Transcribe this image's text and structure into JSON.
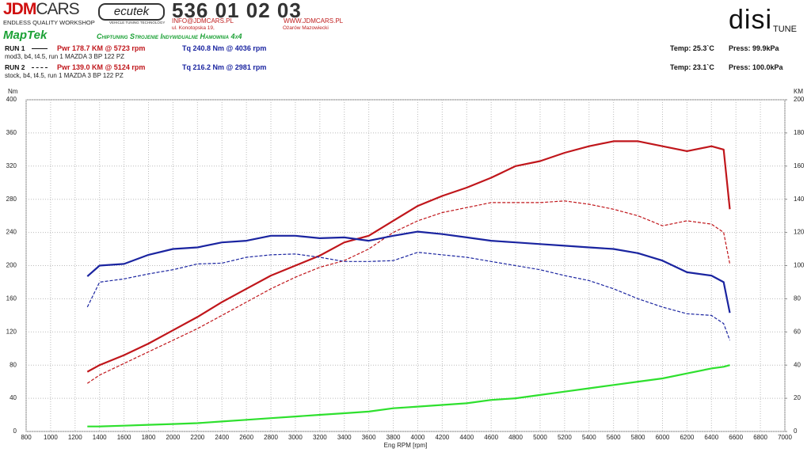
{
  "header": {
    "brand_a": "JDM",
    "brand_b": "CARS",
    "brand_tagline": "ENDLESS QUALITY WORKSHOP",
    "ecu_logo": "ecutek",
    "ecu_tagline": "VEHICLE TUNING TECHNOLOGY",
    "phone": "536 01 02 03",
    "email": "INFO@JDMCARS.PL",
    "web": "WWW.JDMCARS.PL",
    "street": "ul. Konotopska 19,",
    "city": "Ożarów Mazowiecki",
    "maptek": "MapTek",
    "services": "Chiptuning Strojenie Indywidualne Hamownia 4x4",
    "dyno_logo": "disi",
    "dyno_tag": "TUNE"
  },
  "runs": [
    {
      "label": "RUN 1",
      "power": "Pwr  178.7 KM @ 5723 rpm",
      "torque": "Tq 240.8 Nm @ 4036 rpm",
      "desc": "mod3, b4, t4.5, run 1 MAZDA 3 BP 122 PZ",
      "temp": "Temp: 25.3`C",
      "press": "Press: 99.9kPa"
    },
    {
      "label": "RUN 2",
      "power": "Pwr  139.0 KM @ 5124 rpm",
      "torque": "Tq 216.2 Nm @ 2981 rpm",
      "desc": "stock, b4, t4.5, run 1 MAZDA 3 BP 122 PZ",
      "temp": "Temp: 23.1`C",
      "press": "Press: 100.0kPa"
    }
  ],
  "chart_data": {
    "type": "line",
    "xlabel": "Eng RPM [rpm]",
    "ylabel": "Nm",
    "y2label": "KM",
    "x": [
      1300,
      1400,
      1600,
      1800,
      2000,
      2200,
      2400,
      2600,
      2800,
      3000,
      3200,
      3400,
      3600,
      3800,
      4000,
      4200,
      4400,
      4600,
      4800,
      5000,
      5200,
      5400,
      5600,
      5800,
      6000,
      6200,
      6400,
      6500,
      6550
    ],
    "xlim": [
      800,
      7000
    ],
    "xticks": [
      800,
      1000,
      1200,
      1400,
      1600,
      1800,
      2000,
      2200,
      2400,
      2600,
      2800,
      3000,
      3200,
      3400,
      3600,
      3800,
      4000,
      4200,
      4400,
      4600,
      4800,
      5000,
      5200,
      5400,
      5600,
      5800,
      6000,
      6200,
      6400,
      6600,
      6800,
      7000
    ],
    "ylim": [
      0,
      400
    ],
    "yticks": [
      0,
      40,
      80,
      120,
      160,
      200,
      240,
      280,
      320,
      360,
      400
    ],
    "y2lim": [
      0,
      200
    ],
    "y2ticks": [
      0,
      20,
      40,
      60,
      80,
      100,
      120,
      140,
      160,
      180,
      200
    ],
    "grid": true,
    "series": [
      {
        "color": "#c0161b",
        "style": "solid",
        "axis": "y2",
        "values": [
          36,
          40,
          46,
          53,
          61,
          69,
          78,
          86,
          94,
          100,
          106,
          114,
          118,
          127,
          136,
          142,
          147,
          153,
          160,
          163,
          168,
          172,
          175,
          175,
          172,
          169,
          172,
          170,
          134
        ]
      },
      {
        "color": "#c0161b",
        "style": "dashed",
        "axis": "y2",
        "values": [
          29,
          34,
          41,
          48,
          55,
          62,
          70,
          78,
          86,
          93,
          99,
          103,
          110,
          120,
          127,
          132,
          135,
          138,
          138,
          138,
          139,
          137,
          134,
          130,
          124,
          127,
          125,
          120,
          101
        ]
      },
      {
        "color": "#1a24a0",
        "style": "solid",
        "values": [
          187,
          200,
          202,
          213,
          220,
          222,
          228,
          230,
          236,
          236,
          233,
          234,
          230,
          236,
          241,
          238,
          234,
          230,
          228,
          226,
          224,
          222,
          220,
          215,
          206,
          192,
          188,
          180,
          143
        ]
      },
      {
        "color": "#1a24a0",
        "style": "dashed",
        "values": [
          150,
          180,
          184,
          190,
          195,
          202,
          203,
          210,
          213,
          214,
          210,
          205,
          205,
          206,
          216,
          213,
          210,
          205,
          200,
          195,
          188,
          182,
          172,
          160,
          150,
          142,
          140,
          130,
          110
        ]
      },
      {
        "color": "#2ee02e",
        "style": "solid",
        "axis": "y2",
        "values": [
          3,
          3,
          3.5,
          4,
          4.5,
          5,
          6,
          7,
          8,
          9,
          10,
          11,
          12,
          14,
          15,
          16,
          17,
          19,
          20,
          22,
          24,
          26,
          28,
          30,
          32,
          35,
          38,
          39,
          40
        ]
      }
    ]
  }
}
